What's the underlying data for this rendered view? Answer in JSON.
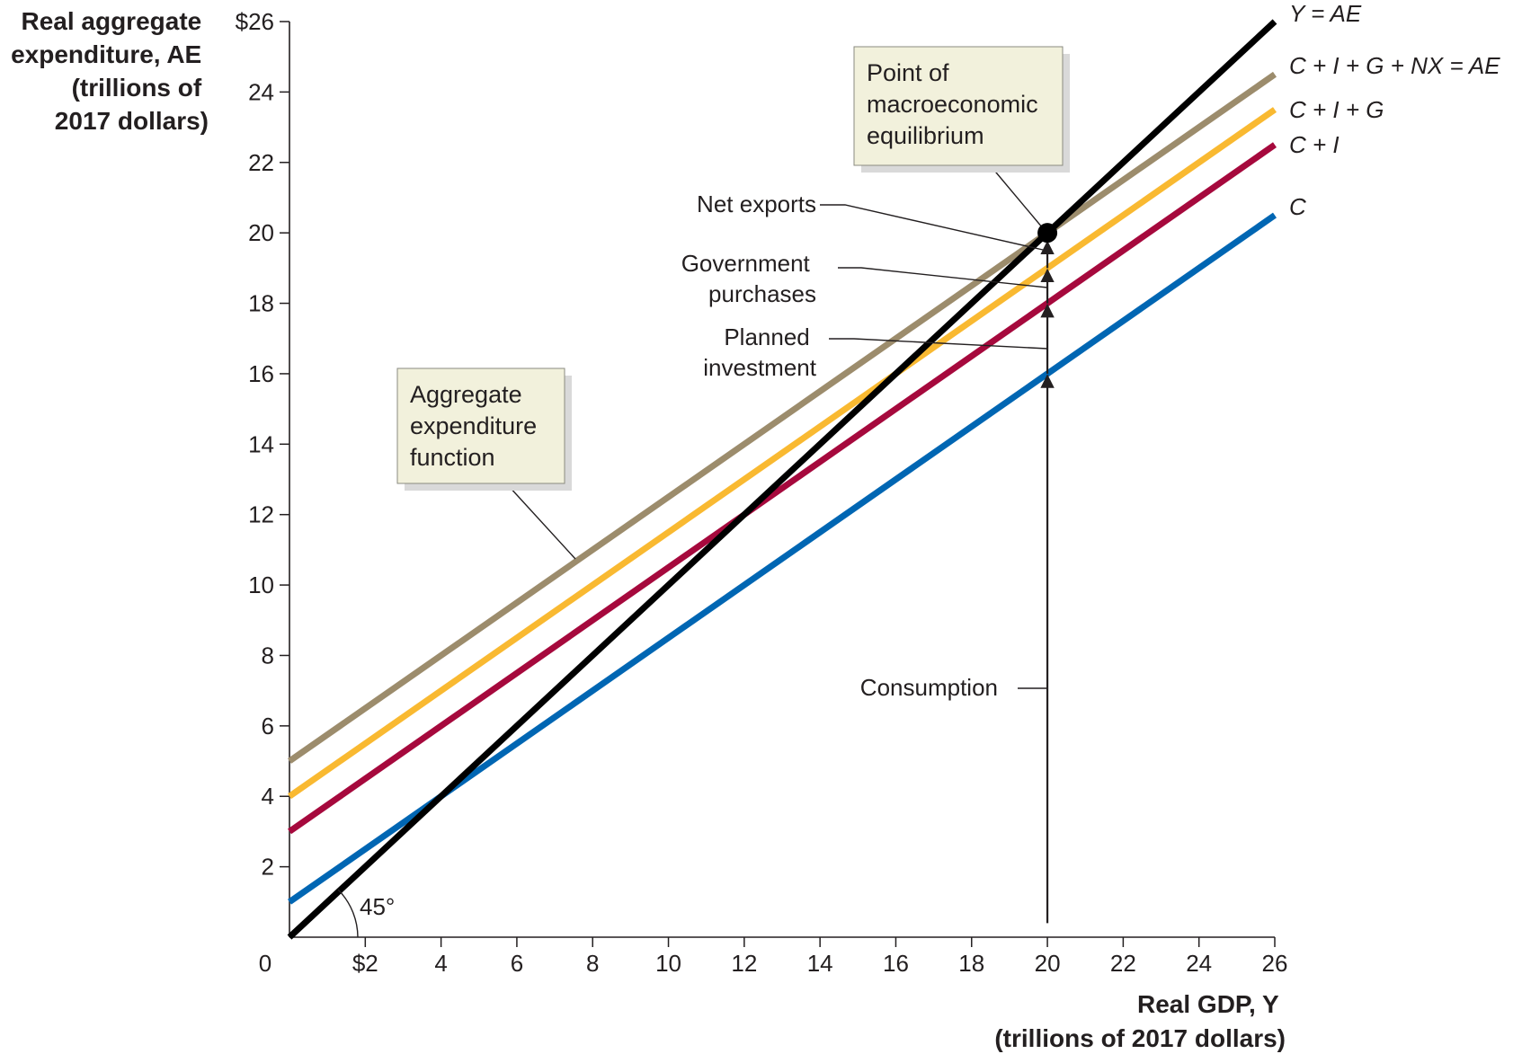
{
  "chart_data": {
    "type": "line",
    "xlabel": [
      "Real GDP, Y",
      "(trillions of 2017 dollars)"
    ],
    "ylabel": [
      "Real aggregate",
      "expenditure, AE",
      "(trillions of",
      "2017 dollars)"
    ],
    "xlim": [
      0,
      26
    ],
    "ylim": [
      0,
      26
    ],
    "x_ticks": [
      "0",
      "$2",
      "4",
      "6",
      "8",
      "10",
      "12",
      "14",
      "16",
      "18",
      "20",
      "22",
      "24",
      "26"
    ],
    "y_ticks": [
      "2",
      "4",
      "6",
      "8",
      "10",
      "12",
      "14",
      "16",
      "18",
      "20",
      "22",
      "24",
      "$26"
    ],
    "series": [
      {
        "name": "Y = AE",
        "x": [
          0,
          26
        ],
        "y": [
          0,
          26
        ],
        "color": "#000000"
      },
      {
        "name": "C + I + G + NX = AE",
        "x": [
          0,
          26
        ],
        "y": [
          5,
          24.5
        ],
        "color": "#9c8c6c"
      },
      {
        "name": "C + I + G",
        "x": [
          0,
          26
        ],
        "y": [
          4,
          23.5
        ],
        "color": "#f9b931"
      },
      {
        "name": "C + I",
        "x": [
          0,
          26
        ],
        "y": [
          3,
          22.5
        ],
        "color": "#a6093d"
      },
      {
        "name": "C",
        "x": [
          0,
          26
        ],
        "y": [
          1,
          20.5
        ],
        "color": "#0066b3"
      }
    ],
    "equilibrium": {
      "x": 20,
      "y": 20
    },
    "angle_label": "45°",
    "component_labels": {
      "net_exports": "Net exports",
      "government": [
        "Government",
        "purchases"
      ],
      "investment": [
        "Planned",
        "investment"
      ],
      "consumption": "Consumption"
    },
    "callouts": {
      "equilibrium": [
        "Point of",
        "macroeconomic",
        "equilibrium"
      ],
      "ae_function": [
        "Aggregate",
        "expenditure",
        "function"
      ]
    }
  }
}
